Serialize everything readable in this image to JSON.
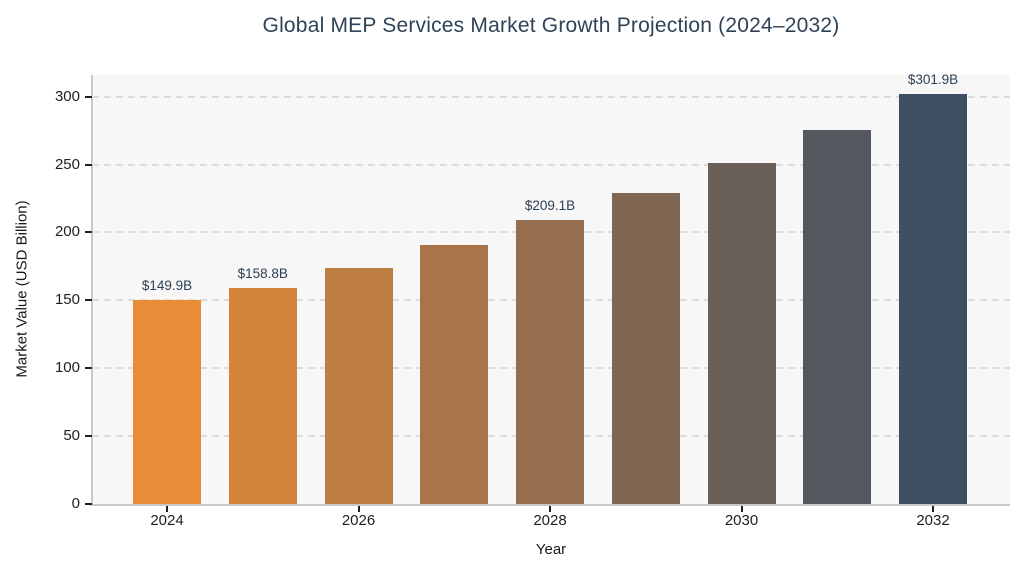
{
  "chart_data": {
    "type": "bar",
    "title": "Global MEP Services Market Growth Projection (2024–2032)",
    "xlabel": "Year",
    "ylabel": "Market Value (USD Billion)",
    "categories": [
      "2024",
      "2025",
      "2026",
      "2027",
      "2028",
      "2029",
      "2030",
      "2031",
      "2032"
    ],
    "values": [
      149.9,
      158.8,
      174.1,
      190.8,
      209.1,
      229.2,
      251.2,
      275.4,
      301.9
    ],
    "bar_value_labels": [
      "$149.9B",
      "$158.8B",
      null,
      null,
      "$209.1B",
      null,
      null,
      null,
      "$301.9B"
    ],
    "bar_colors": [
      "#E98C38",
      "#D4843D",
      "#BE7D43",
      "#A97548",
      "#946E4E",
      "#7E6653",
      "#695E58",
      "#53575E",
      "#3E4F63"
    ],
    "y_ticks": [
      0,
      50,
      100,
      150,
      200,
      250,
      300
    ],
    "x_tick_indices": [
      0,
      2,
      4,
      6,
      8
    ],
    "ylim": [
      0,
      316
    ],
    "grid": "horizontal-dashed",
    "legend_position": "none",
    "colors": {
      "title": "#2F4357",
      "data_label": "#2E4053",
      "tick_label": "#1F1F1F",
      "axis_label": "#1A1A1A",
      "plot_bg": "#F7F7F8",
      "gridline": "#DBDBDB",
      "spine": "#C9C9C9",
      "figure_bg": "#FFFFFF"
    }
  }
}
